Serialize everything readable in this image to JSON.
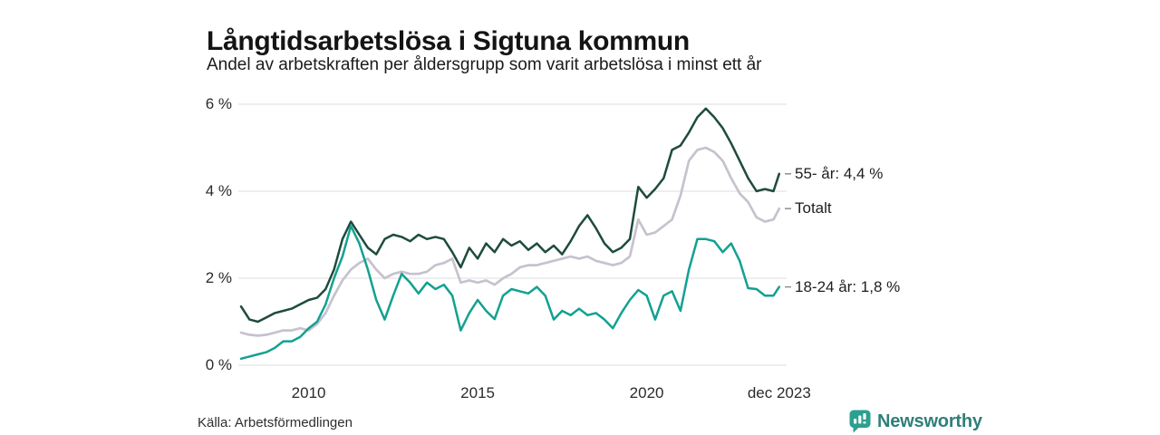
{
  "header": {
    "title": "Långtidsarbetslösa i Sigtuna kommun",
    "subtitle": "Andel av arbetskraften per åldersgrupp som varit arbetslösa i minst ett år"
  },
  "source_note": "Källa: Arbetsförmedlingen",
  "branding": {
    "name": "Newsworthy",
    "icon": "bar-chart-speech-bubble-icon",
    "text_color": "#2e7f79",
    "icon_color": "#2ba08f"
  },
  "chart_data": {
    "type": "line",
    "title": "Långtidsarbetslösa i Sigtuna kommun",
    "subtitle": "Andel av arbetskraften per åldersgrupp som varit arbetslösa i minst ett år",
    "x_unit": "year (monthly series, 2008 – dec 2023)",
    "y_unit": "% av arbetskraften",
    "x_start": 2008,
    "x_step": 0.25,
    "x_end": 2023.92,
    "ylim": [
      0,
      6.2
    ],
    "grid": "horizontal",
    "grid_color": "#dcdcdc",
    "axis_label_color": "#2b2b2b",
    "end_tick_color": "#8e8e8e",
    "y_ticks": [
      {
        "v": 0,
        "label": "0 %"
      },
      {
        "v": 2,
        "label": "2 %"
      },
      {
        "v": 4,
        "label": "4 %"
      },
      {
        "v": 6,
        "label": "6 %"
      }
    ],
    "x_ticks": [
      {
        "t": 2010,
        "label": "2010"
      },
      {
        "t": 2015,
        "label": "2015"
      },
      {
        "t": 2020,
        "label": "2020"
      },
      {
        "t": 2023.92,
        "label": "dec 2023"
      }
    ],
    "legend_position": "end-of-line labels, right side",
    "series": [
      {
        "name": "Totalt",
        "end_label": "Totalt",
        "end_value": 3.6,
        "color": "#c6c2ce",
        "stroke_width": 2.7,
        "values": [
          0.75,
          0.7,
          0.68,
          0.7,
          0.75,
          0.8,
          0.8,
          0.85,
          0.8,
          0.95,
          1.2,
          1.6,
          1.95,
          2.2,
          2.35,
          2.45,
          2.2,
          2.0,
          2.1,
          2.15,
          2.1,
          2.1,
          2.15,
          2.3,
          2.35,
          2.45,
          1.9,
          1.95,
          1.9,
          1.95,
          1.85,
          2.0,
          2.1,
          2.25,
          2.3,
          2.3,
          2.35,
          2.4,
          2.45,
          2.5,
          2.45,
          2.5,
          2.4,
          2.35,
          2.3,
          2.35,
          2.5,
          3.35,
          3.0,
          3.05,
          3.2,
          3.35,
          3.9,
          4.7,
          4.95,
          5.0,
          4.9,
          4.7,
          4.3,
          3.95,
          3.75,
          3.4,
          3.3,
          3.35,
          3.6
        ]
      },
      {
        "name": "55- år",
        "end_label": "55- år: 4,4 %",
        "end_value": 4.4,
        "color": "#1e4b3d",
        "stroke_width": 2.5,
        "values": [
          1.35,
          1.05,
          1.0,
          1.1,
          1.2,
          1.25,
          1.3,
          1.4,
          1.5,
          1.55,
          1.75,
          2.2,
          2.9,
          3.3,
          3.0,
          2.7,
          2.55,
          2.9,
          3.0,
          2.95,
          2.85,
          3.0,
          2.9,
          2.95,
          2.9,
          2.6,
          2.25,
          2.7,
          2.45,
          2.8,
          2.6,
          2.9,
          2.75,
          2.85,
          2.65,
          2.8,
          2.6,
          2.75,
          2.55,
          2.85,
          3.2,
          3.45,
          3.15,
          2.8,
          2.6,
          2.7,
          2.9,
          4.1,
          3.85,
          4.05,
          4.3,
          4.95,
          5.05,
          5.35,
          5.7,
          5.9,
          5.7,
          5.45,
          5.1,
          4.7,
          4.3,
          4.0,
          4.05,
          4.0,
          4.4
        ]
      },
      {
        "name": "18-24 år",
        "end_label": "18-24 år: 1,8 %",
        "end_value": 1.8,
        "color": "#12a191",
        "stroke_width": 2.5,
        "values": [
          0.15,
          0.2,
          0.25,
          0.3,
          0.4,
          0.55,
          0.55,
          0.65,
          0.85,
          1.0,
          1.4,
          2.0,
          2.5,
          3.2,
          2.8,
          2.2,
          1.5,
          1.05,
          1.6,
          2.1,
          1.9,
          1.65,
          1.9,
          1.75,
          1.85,
          1.6,
          0.8,
          1.2,
          1.5,
          1.25,
          1.06,
          1.6,
          1.75,
          1.7,
          1.65,
          1.8,
          1.6,
          1.05,
          1.25,
          1.15,
          1.3,
          1.15,
          1.2,
          1.05,
          0.85,
          1.2,
          1.5,
          1.73,
          1.6,
          1.05,
          1.6,
          1.7,
          1.25,
          2.2,
          2.9,
          2.9,
          2.85,
          2.6,
          2.8,
          2.4,
          1.77,
          1.75,
          1.6,
          1.6,
          1.8
        ]
      }
    ]
  }
}
